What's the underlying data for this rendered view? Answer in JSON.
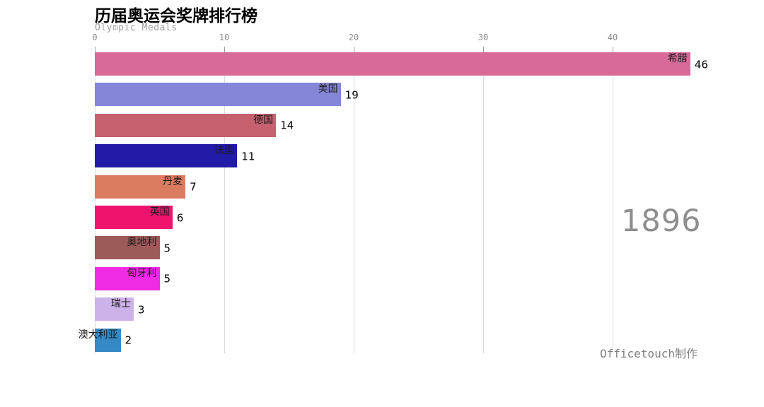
{
  "chart_data": {
    "type": "bar",
    "orientation": "horizontal",
    "title": "历届奥运会奖牌排行榜",
    "subtitle": "Olympic Medals",
    "current_year": "1896",
    "watermark": "Officetouch制作",
    "x_ticks": [
      0,
      10,
      20,
      30,
      40
    ],
    "x_tick_labels": [
      "0",
      "10",
      "20",
      "30",
      "40"
    ],
    "xlim": [
      0,
      46
    ],
    "grid": true,
    "legend": false,
    "categories": [
      "希腊",
      "美国",
      "德国",
      "法国",
      "丹麦",
      "英国",
      "奥地利",
      "匈牙利",
      "瑞士",
      "澳大利亚"
    ],
    "values": [
      46,
      19,
      14,
      11,
      7,
      6,
      5,
      5,
      3,
      2
    ],
    "bar_colors": [
      "#d76a99",
      "#8486d8",
      "#c7606f",
      "#211ba8",
      "#db7c60",
      "#ee146e",
      "#9c5a59",
      "#ef2be3",
      "#cdb2e9",
      "#338ac6"
    ],
    "colors": {
      "title": "#000000",
      "subtitle": "#9e9e9e",
      "tick_label": "#8a8a8a",
      "grid_line": "#dcdcdc",
      "year": "#8e8e8e",
      "watermark": "#808080",
      "bar_label": "#1a1a1a",
      "value_label": "#000000"
    }
  }
}
